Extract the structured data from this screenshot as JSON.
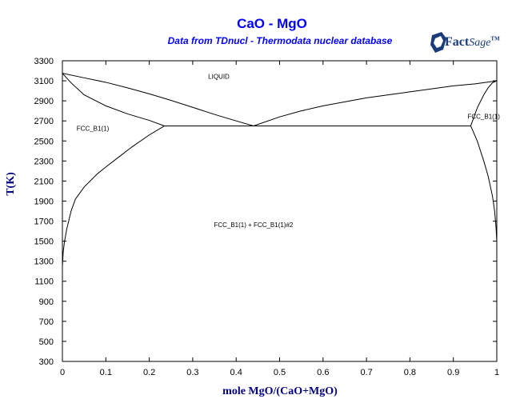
{
  "chart_data": {
    "type": "line",
    "title": "CaO - MgO",
    "subtitle": "Data from TDnucl - Thermodata nuclear database",
    "xlabel": "mole MgO/(CaO+MgO)",
    "ylabel": "T(K)",
    "xlim": [
      0,
      1
    ],
    "ylim": [
      300,
      3300
    ],
    "x_ticks": [
      0,
      0.1,
      0.2,
      0.3,
      0.4,
      0.5,
      0.6,
      0.7,
      0.8,
      0.9,
      1
    ],
    "x_tick_labels": [
      "0",
      "0.1",
      "0.2",
      "0.3",
      "0.4",
      "0.5",
      "0.6",
      "0.7",
      "0.8",
      "0.9",
      "1"
    ],
    "y_ticks": [
      300,
      500,
      700,
      900,
      1100,
      1300,
      1500,
      1700,
      1900,
      2100,
      2300,
      2500,
      2700,
      2900,
      3100,
      3300
    ],
    "y_tick_labels": [
      "300",
      "500",
      "700",
      "900",
      "1100",
      "1300",
      "1500",
      "1700",
      "1900",
      "2100",
      "2300",
      "2500",
      "2700",
      "2900",
      "3100",
      "3300"
    ],
    "grid": false,
    "series": [
      {
        "id": "liquidus-cao",
        "x": [
          0,
          0.05,
          0.1,
          0.15,
          0.2,
          0.25,
          0.3,
          0.35,
          0.4,
          0.44
        ],
        "y": [
          3175,
          3130,
          3085,
          3030,
          2970,
          2905,
          2835,
          2765,
          2700,
          2650
        ]
      },
      {
        "id": "solidus-cao",
        "x": [
          0,
          0.02,
          0.05,
          0.1,
          0.15,
          0.2,
          0.235
        ],
        "y": [
          3175,
          3080,
          2960,
          2850,
          2770,
          2705,
          2650
        ]
      },
      {
        "id": "solvus-cao",
        "x": [
          0,
          0.002,
          0.005,
          0.01,
          0.02,
          0.03,
          0.05,
          0.08,
          0.1,
          0.13,
          0.16,
          0.2,
          0.235
        ],
        "y": [
          1250,
          1400,
          1500,
          1620,
          1800,
          1920,
          2040,
          2170,
          2240,
          2340,
          2440,
          2560,
          2650
        ]
      },
      {
        "id": "eutectic",
        "x": [
          0.235,
          0.94
        ],
        "y": [
          2650,
          2650
        ]
      },
      {
        "id": "liquidus-mgo",
        "x": [
          0.44,
          0.5,
          0.55,
          0.6,
          0.65,
          0.7,
          0.75,
          0.8,
          0.85,
          0.9,
          0.95,
          1.0
        ],
        "y": [
          2650,
          2740,
          2800,
          2850,
          2890,
          2930,
          2960,
          2990,
          3020,
          3050,
          3070,
          3100
        ]
      },
      {
        "id": "solidus-mgo",
        "x": [
          0.94,
          0.955,
          0.97,
          0.98,
          0.99,
          1.0
        ],
        "y": [
          2650,
          2830,
          2960,
          3030,
          3080,
          3100
        ]
      },
      {
        "id": "solvus-mgo",
        "x": [
          0.94,
          0.955,
          0.97,
          0.98,
          0.99,
          0.995,
          0.998,
          1.0
        ],
        "y": [
          2650,
          2500,
          2300,
          2150,
          1950,
          1800,
          1650,
          1500
        ]
      }
    ],
    "annotations": [
      {
        "text": "LIQUID",
        "x": 0.36,
        "y": 3120
      },
      {
        "text": "FCC_B1(1)",
        "x": 0.07,
        "y": 2600
      },
      {
        "text": "FCC_B1(1)",
        "x": 0.97,
        "y": 2720
      },
      {
        "text": "FCC_B1(1) + FCC_B1(1)#2",
        "x": 0.44,
        "y": 1640
      }
    ]
  },
  "logo": {
    "text_bold": "Fact",
    "text_italic": "Sage",
    "tm": "TM"
  },
  "colors": {
    "title": "#0000ff",
    "subtitle": "#0000ff",
    "axis_label": "#000080",
    "logo": "#1a3c7a",
    "line": "#000000"
  }
}
